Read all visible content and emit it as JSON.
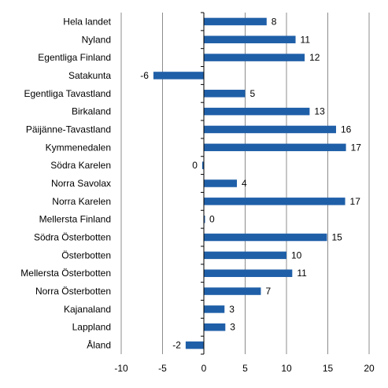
{
  "chart_data": {
    "type": "bar",
    "orientation": "horizontal",
    "categories": [
      "Hela landet",
      "Nyland",
      "Egentliga Finland",
      "Satakunta",
      "Egentliga Tavastland",
      "Birkaland",
      "Päijänne-Tavastland",
      "Kymmenedalen",
      "Södra Karelen",
      "Norra Savolax",
      "Norra Karelen",
      "Mellersta Finland",
      "Södra Österbotten",
      "Österbotten",
      "Mellersta Österbotten",
      "Norra Österbotten",
      "Kajanaland",
      "Lappland",
      "Åland"
    ],
    "values": [
      7.6,
      11.1,
      12.2,
      -6.1,
      5.0,
      12.8,
      16.0,
      17.2,
      -0.2,
      4.0,
      17.1,
      0.1,
      14.9,
      10.0,
      10.7,
      6.9,
      2.5,
      2.6,
      -2.2
    ],
    "data_labels": [
      "8",
      "11",
      "12",
      "-6",
      "5",
      "13",
      "16",
      "17",
      "0",
      "4",
      "17",
      "0",
      "15",
      "10",
      "11",
      "7",
      "3",
      "3",
      "-2"
    ],
    "xlim": [
      -10,
      20
    ],
    "x_ticks": [
      -10,
      -5,
      0,
      5,
      10,
      15,
      20
    ],
    "x_tick_labels": [
      "-10",
      "-5",
      "0",
      "5",
      "10",
      "15",
      "20"
    ],
    "grid": "vertical",
    "title": "",
    "xlabel": "",
    "ylabel": "",
    "colors": {
      "bar": "#1f5fa8",
      "grid": "#8c8c8c",
      "axis": "#000000"
    }
  }
}
